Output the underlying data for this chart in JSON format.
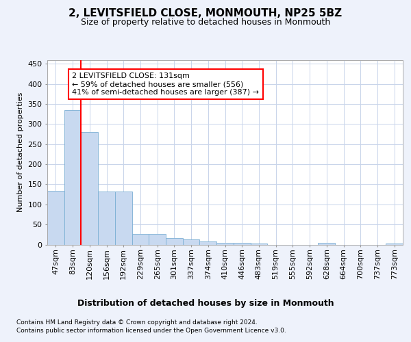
{
  "title": "2, LEVITSFIELD CLOSE, MONMOUTH, NP25 5BZ",
  "subtitle": "Size of property relative to detached houses in Monmouth",
  "xlabel": "Distribution of detached houses by size in Monmouth",
  "ylabel": "Number of detached properties",
  "footer_line1": "Contains HM Land Registry data © Crown copyright and database right 2024.",
  "footer_line2": "Contains public sector information licensed under the Open Government Licence v3.0.",
  "bin_labels": [
    "47sqm",
    "83sqm",
    "120sqm",
    "156sqm",
    "192sqm",
    "229sqm",
    "265sqm",
    "301sqm",
    "337sqm",
    "374sqm",
    "410sqm",
    "446sqm",
    "483sqm",
    "519sqm",
    "555sqm",
    "592sqm",
    "628sqm",
    "664sqm",
    "700sqm",
    "737sqm",
    "773sqm"
  ],
  "bar_values": [
    133,
    335,
    280,
    132,
    132,
    27,
    27,
    16,
    12,
    8,
    5,
    5,
    3,
    0,
    0,
    0,
    4,
    0,
    0,
    0,
    3
  ],
  "bar_color": "#c8d9f0",
  "bar_edge_color": "#7bafd4",
  "red_line_x": 1.5,
  "annotation_text": "2 LEVITSFIELD CLOSE: 131sqm\n← 59% of detached houses are smaller (556)\n41% of semi-detached houses are larger (387) →",
  "annotation_box_color": "white",
  "annotation_box_edge_color": "red",
  "ylim": [
    0,
    460
  ],
  "yticks": [
    0,
    50,
    100,
    150,
    200,
    250,
    300,
    350,
    400,
    450
  ],
  "background_color": "#eef2fb",
  "plot_bg_color": "white",
  "grid_color": "#c8d4ea",
  "title_fontsize": 11,
  "subtitle_fontsize": 9,
  "ylabel_fontsize": 8,
  "xlabel_fontsize": 9,
  "tick_fontsize": 8,
  "annotation_fontsize": 8,
  "footer_fontsize": 6.5
}
